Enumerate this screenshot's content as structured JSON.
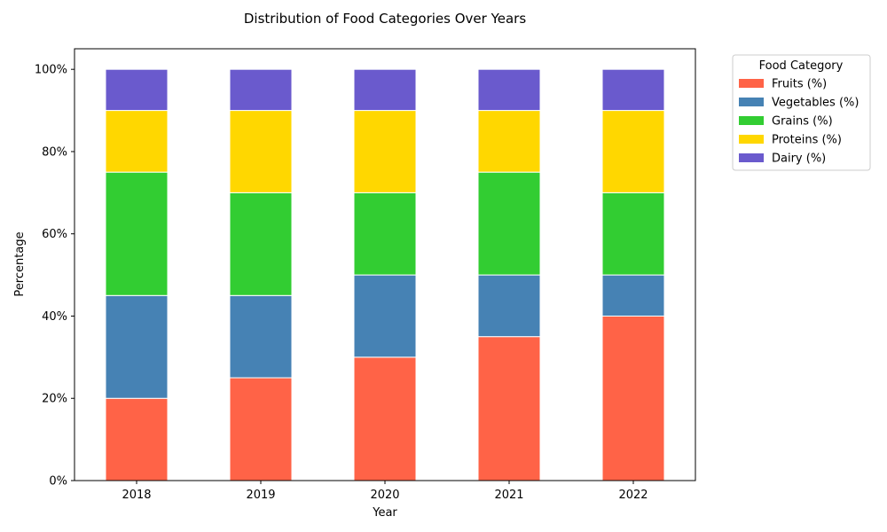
{
  "chart_data": {
    "type": "bar",
    "stacked": true,
    "title": "Distribution of Food Categories Over Years",
    "xlabel": "Year",
    "ylabel": "Percentage",
    "categories": [
      "2018",
      "2019",
      "2020",
      "2021",
      "2022"
    ],
    "ylim": [
      0,
      105
    ],
    "yticks": [
      0,
      20,
      40,
      60,
      80,
      100
    ],
    "ytick_labels": [
      "0%",
      "20%",
      "40%",
      "60%",
      "80%",
      "100%"
    ],
    "grid": false,
    "legend": {
      "title": "Food Category",
      "placement": "outside-right-top"
    },
    "series": [
      {
        "name": "Fruits (%)",
        "color": "#ff6347",
        "values": [
          20,
          25,
          30,
          35,
          40
        ]
      },
      {
        "name": "Vegetables (%)",
        "color": "#4682b4",
        "values": [
          25,
          20,
          20,
          15,
          10
        ]
      },
      {
        "name": "Grains (%)",
        "color": "#32cd32",
        "values": [
          30,
          25,
          20,
          25,
          20
        ]
      },
      {
        "name": "Proteins (%)",
        "color": "#ffd700",
        "values": [
          15,
          20,
          20,
          15,
          20
        ]
      },
      {
        "name": "Dairy (%)",
        "color": "#6a5acd",
        "values": [
          10,
          10,
          10,
          10,
          10
        ]
      }
    ]
  }
}
